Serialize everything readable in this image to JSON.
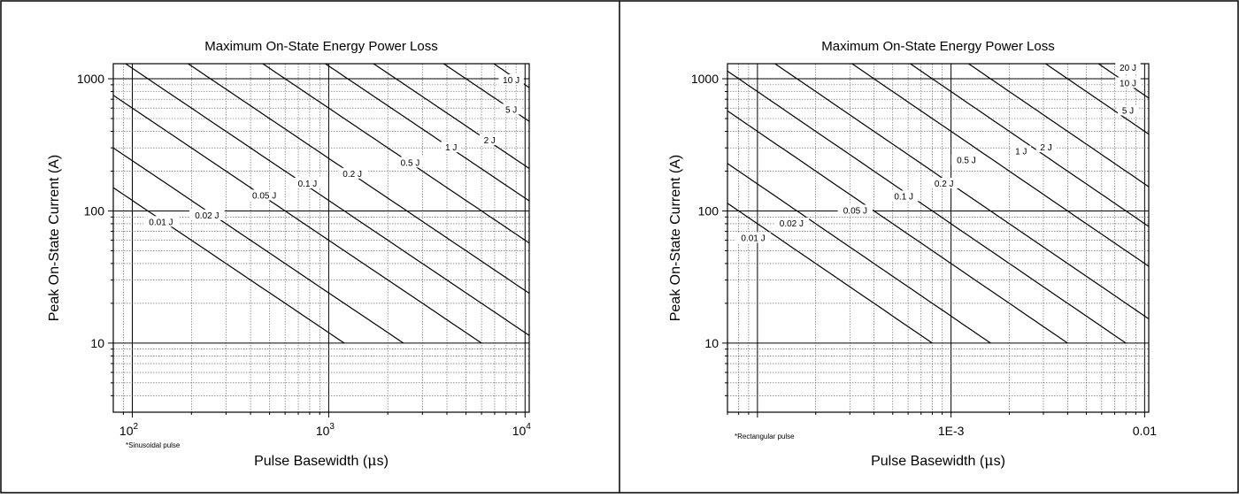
{
  "chart_data": [
    {
      "type": "line",
      "title": "Maximum On-State Energy Power Loss",
      "xlabel_pre": "Pulse Basewidth (",
      "xlabel_mu": "μ",
      "xlabel_post": "s)",
      "ylabel": "Peak On-State Current (A)",
      "x_scale": "log",
      "y_scale": "log",
      "xlim": [
        80,
        10500
      ],
      "ylim": [
        3,
        1300
      ],
      "grid": true,
      "x_ticks": [
        {
          "value": 100,
          "base": "10",
          "exp": "2"
        },
        {
          "value": 1000,
          "base": "10",
          "exp": "3"
        },
        {
          "value": 10000,
          "base": "10",
          "exp": "4"
        }
      ],
      "y_ticks": [
        {
          "value": 10,
          "label": "10"
        },
        {
          "value": 100,
          "label": "100"
        },
        {
          "value": 1000,
          "label": "1000"
        }
      ],
      "note": "*Sinusoidal pulse",
      "curve_ymin": 10,
      "curve_ymax": 1300,
      "series": [
        {
          "name": "0.01 J",
          "energy": 0.01,
          "k": 12000,
          "label_at": [
            140,
            82
          ]
        },
        {
          "name": "0.02 J",
          "energy": 0.02,
          "k": 24000,
          "label_at": [
            240,
            92
          ]
        },
        {
          "name": "0.05 J",
          "energy": 0.05,
          "k": 60000,
          "label_at": [
            470,
            130
          ]
        },
        {
          "name": "0.1 J",
          "energy": 0.1,
          "k": 120000,
          "label_at": [
            780,
            160
          ]
        },
        {
          "name": "0.2 J",
          "energy": 0.2,
          "k": 250000,
          "label_at": [
            1320,
            190
          ]
        },
        {
          "name": "0.5 J",
          "energy": 0.5,
          "k": 600000,
          "label_at": [
            2600,
            230
          ]
        },
        {
          "name": "1 J",
          "energy": 1,
          "k": 1250000,
          "label_at": [
            4200,
            300
          ]
        },
        {
          "name": "2 J",
          "energy": 2,
          "k": 2200000,
          "label_at": [
            6600,
            340
          ]
        },
        {
          "name": "5 J",
          "energy": 5,
          "k": 5000000,
          "label_at": [
            8500,
            580
          ]
        },
        {
          "name": "10 J",
          "energy": 10,
          "k": 9000000,
          "label_at": [
            8500,
            970
          ]
        }
      ]
    },
    {
      "type": "line",
      "title": "Maximum On-State Energy Power Loss",
      "xlabel_pre": "Pulse Basewidth (",
      "xlabel_mu": "μ",
      "xlabel_post": "s)",
      "ylabel": "Peak On-State Current (A)",
      "x_scale": "log",
      "y_scale": "log",
      "xlim": [
        7e-05,
        0.0105
      ],
      "ylim": [
        3,
        1300
      ],
      "grid": true,
      "x_ticks": [
        {
          "value": 0.001,
          "label": "1E-3"
        },
        {
          "value": 0.01,
          "label": "0.01"
        }
      ],
      "y_ticks": [
        {
          "value": 10,
          "label": "10"
        },
        {
          "value": 100,
          "label": "100"
        },
        {
          "value": 1000,
          "label": "1000"
        }
      ],
      "note": "*Rectangular pulse",
      "curve_ymin": 10,
      "curve_ymax": 1300,
      "series": [
        {
          "name": "0.01 J",
          "energy": 0.01,
          "k": 0.008,
          "label_at": [
            9.5e-05,
            62
          ]
        },
        {
          "name": "0.02 J",
          "energy": 0.02,
          "k": 0.016,
          "label_at": [
            0.00015,
            80
          ]
        },
        {
          "name": "0.05 J",
          "energy": 0.05,
          "k": 0.04,
          "label_at": [
            0.00032,
            100
          ]
        },
        {
          "name": "0.1 J",
          "energy": 0.1,
          "k": 0.08,
          "label_at": [
            0.00057,
            128
          ]
        },
        {
          "name": "0.2 J",
          "energy": 0.2,
          "k": 0.16,
          "label_at": [
            0.00092,
            160
          ]
        },
        {
          "name": "0.5 J",
          "energy": 0.5,
          "k": 0.4,
          "label_at": [
            0.0012,
            240
          ]
        },
        {
          "name": "1 J",
          "energy": 1,
          "k": 0.8,
          "label_at": [
            0.0023,
            280
          ]
        },
        {
          "name": "2 J",
          "energy": 2,
          "k": 1.6,
          "label_at": [
            0.0031,
            300
          ]
        },
        {
          "name": "5 J",
          "energy": 5,
          "k": 4,
          "label_at": [
            0.0082,
            570
          ]
        },
        {
          "name": "10 J",
          "energy": 10,
          "k": 7.5,
          "label_at": [
            0.0082,
            920
          ]
        },
        {
          "name": "20 J",
          "energy": 20,
          "k": 15,
          "label_at": [
            0.0082,
            1200
          ]
        }
      ]
    }
  ]
}
